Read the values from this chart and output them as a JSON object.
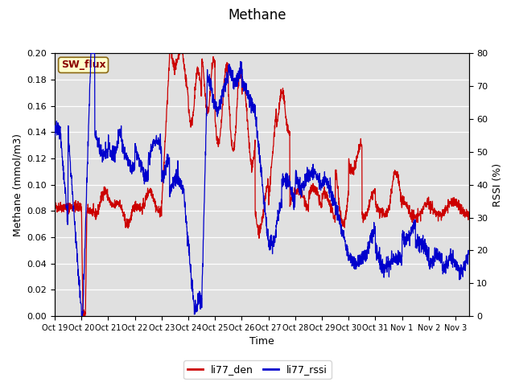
{
  "title": "Methane",
  "xlabel": "Time",
  "ylabel_left": "Methane (mmol/m3)",
  "ylabel_right": "RSSI (%)",
  "legend_label1": "li77_den",
  "legend_label2": "li77_rssi",
  "annotation_text": "SW_flux",
  "ylim_left": [
    0.0,
    0.2
  ],
  "ylim_right": [
    0,
    80
  ],
  "yticks_left": [
    0.0,
    0.02,
    0.04,
    0.06,
    0.08,
    0.1,
    0.12,
    0.14,
    0.16,
    0.18,
    0.2
  ],
  "yticks_right": [
    0,
    10,
    20,
    30,
    40,
    50,
    60,
    70,
    80
  ],
  "xtick_labels": [
    "Oct 19",
    "Oct 20",
    "Oct 21",
    "Oct 22",
    "Oct 23",
    "Oct 24",
    "Oct 25",
    "Oct 26",
    "Oct 27",
    "Oct 28",
    "Oct 29",
    "Oct 30",
    "Oct 31",
    "Nov 1",
    "Nov 2",
    "Nov 3"
  ],
  "color_den": "#cc0000",
  "color_rssi": "#0000cc",
  "background_color": "#e0e0e0",
  "grid_color": "#ffffff",
  "title_fontsize": 12,
  "axis_label_fontsize": 9,
  "tick_label_fontsize": 8,
  "linewidth": 0.9
}
